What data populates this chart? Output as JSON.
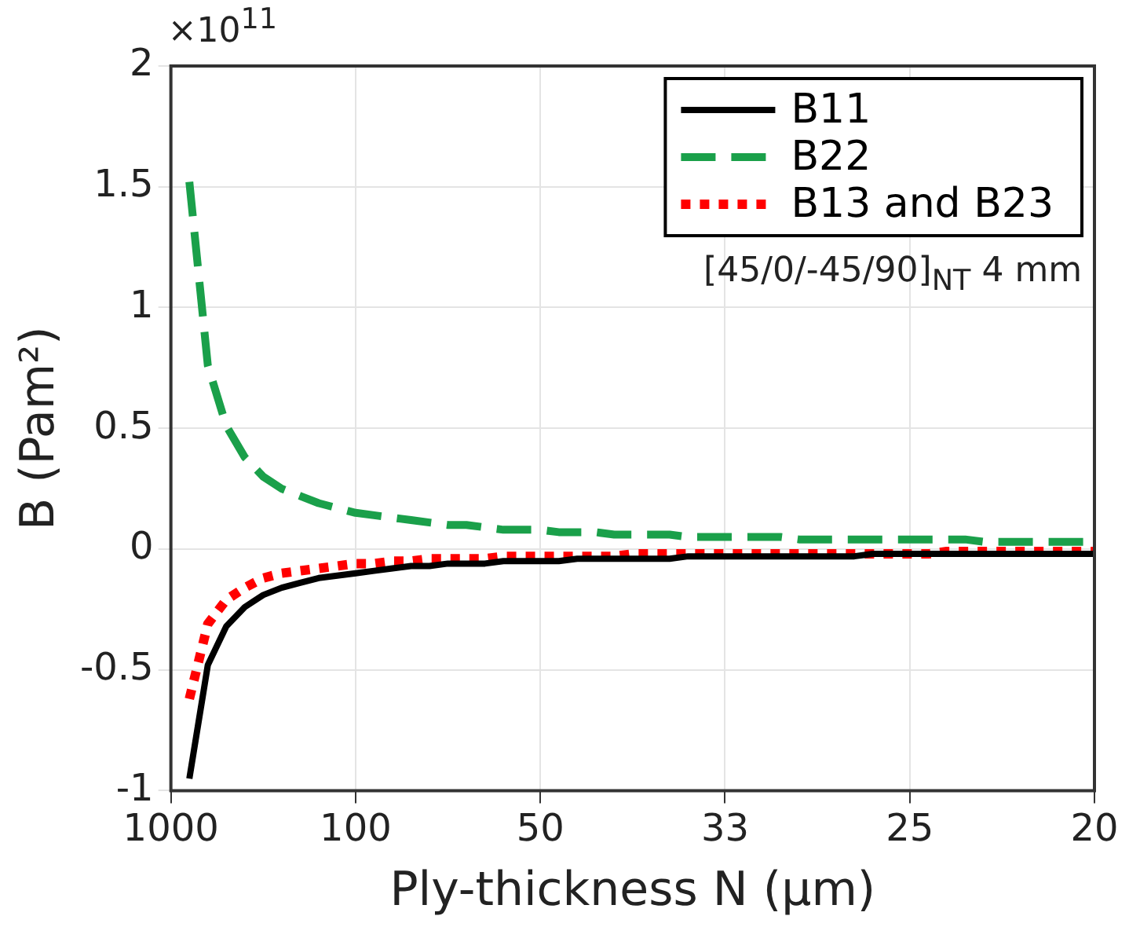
{
  "chart_data": {
    "type": "line",
    "xlabel": "Ply-thickness N (µm)",
    "ylabel": "B (Pam²)",
    "categories": [
      "1000",
      null,
      null,
      null,
      null,
      null,
      null,
      null,
      null,
      null,
      "100",
      null,
      null,
      null,
      null,
      null,
      null,
      null,
      null,
      null,
      "50",
      null,
      null,
      null,
      null,
      null,
      null,
      null,
      null,
      null,
      "33",
      null,
      null,
      null,
      null,
      null,
      null,
      null,
      null,
      null,
      "25",
      null,
      null,
      null,
      null,
      null,
      null,
      null,
      null,
      null,
      "20"
    ],
    "series": [
      {
        "name": "B11",
        "color": "#000000",
        "line_style": "solid",
        "values": [
          null,
          -0.95,
          -0.48,
          -0.32,
          -0.24,
          -0.19,
          -0.16,
          -0.14,
          -0.12,
          -0.11,
          -0.1,
          -0.09,
          -0.08,
          -0.07,
          -0.07,
          -0.06,
          -0.06,
          -0.06,
          -0.05,
          -0.05,
          -0.05,
          -0.05,
          -0.04,
          -0.04,
          -0.04,
          -0.04,
          -0.04,
          -0.04,
          -0.03,
          -0.03,
          -0.03,
          -0.03,
          -0.03,
          -0.03,
          -0.03,
          -0.03,
          -0.03,
          -0.03,
          -0.02,
          -0.02,
          -0.02,
          -0.02,
          -0.02,
          -0.02,
          -0.02,
          -0.02,
          -0.02,
          -0.02,
          -0.02,
          -0.02,
          -0.02
        ]
      },
      {
        "name": "B22",
        "color": "#1aa04a",
        "line_style": "dashed",
        "values": [
          null,
          1.52,
          0.76,
          0.51,
          0.38,
          0.3,
          0.25,
          0.22,
          0.19,
          0.17,
          0.15,
          0.14,
          0.13,
          0.12,
          0.11,
          0.1,
          0.1,
          0.09,
          0.08,
          0.08,
          0.08,
          0.07,
          0.07,
          0.07,
          0.06,
          0.06,
          0.06,
          0.06,
          0.05,
          0.05,
          0.05,
          0.05,
          0.05,
          0.05,
          0.04,
          0.04,
          0.04,
          0.04,
          0.04,
          0.04,
          0.04,
          0.04,
          0.04,
          0.04,
          0.03,
          0.03,
          0.03,
          0.03,
          0.03,
          0.03,
          0.03
        ]
      },
      {
        "name": "B13 and B23",
        "color": "#ff0000",
        "line_style": "dotted",
        "values": [
          null,
          -0.62,
          -0.31,
          -0.21,
          -0.16,
          -0.12,
          -0.1,
          -0.09,
          -0.08,
          -0.07,
          -0.06,
          -0.06,
          -0.05,
          -0.05,
          -0.04,
          -0.04,
          -0.04,
          -0.04,
          -0.03,
          -0.03,
          -0.03,
          -0.03,
          -0.03,
          -0.03,
          -0.03,
          -0.02,
          -0.02,
          -0.02,
          -0.02,
          -0.02,
          -0.02,
          -0.02,
          -0.02,
          -0.02,
          -0.02,
          -0.02,
          -0.02,
          -0.02,
          -0.02,
          -0.02,
          -0.02,
          -0.02,
          -0.01,
          -0.01,
          -0.01,
          -0.01,
          -0.01,
          -0.01,
          -0.01,
          -0.01,
          -0.01
        ]
      }
    ],
    "ylim": [
      -1,
      2
    ],
    "yticks": [
      -1,
      -0.5,
      0,
      0.5,
      1,
      1.5,
      2
    ],
    "grid": true,
    "legend": "top right",
    "marker": "none",
    "annotations": [
      "×10$^{11}$",
      "[45/0/-45/90]$_{NT}$ 4 mm"
    ]
  }
}
